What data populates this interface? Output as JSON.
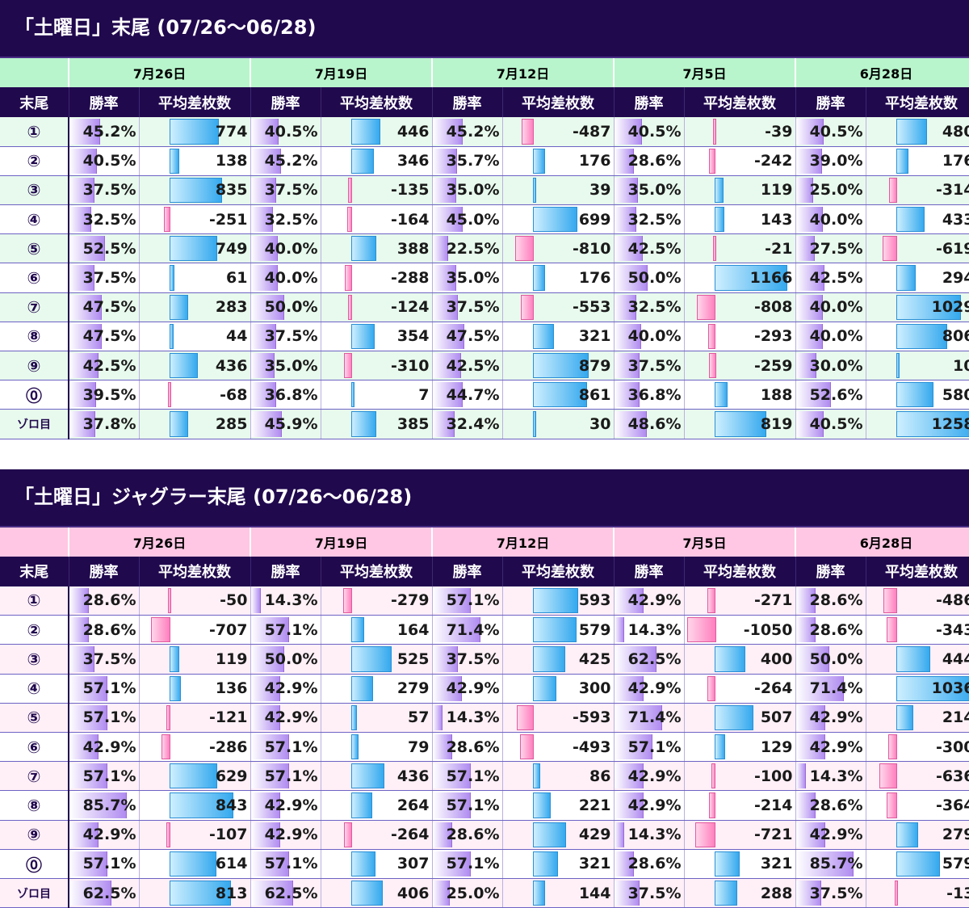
{
  "colors": {
    "header_bg": "#21094e",
    "t1_date_bg": "#b8f5cc",
    "t1_row_tint": "#e8faed",
    "t2_date_bg": "#ffc7e3",
    "t2_row_tint": "#fff0f7",
    "win_bar": "#b08cf0",
    "pos_bar": "#35a9ee",
    "neg_bar": "#ff7fbe"
  },
  "col_headers": {
    "label": "末尾",
    "win": "勝率",
    "diff": "平均差枚数"
  },
  "row_labels": [
    "①",
    "②",
    "③",
    "④",
    "⑤",
    "⑥",
    "⑦",
    "⑧",
    "⑨",
    "⓪",
    "ゾロ目"
  ],
  "dates": [
    "7月26日",
    "7月19日",
    "7月12日",
    "7月5日",
    "6月28日"
  ],
  "table1": {
    "title": "「土曜日」末尾 (07/26～06/28)",
    "max_abs_diff": 1258,
    "rows": [
      [
        [
          "45.2%",
          774
        ],
        [
          "40.5%",
          446
        ],
        [
          "45.2%",
          -487
        ],
        [
          "40.5%",
          -39
        ],
        [
          "40.5%",
          480
        ]
      ],
      [
        [
          "40.5%",
          138
        ],
        [
          "45.2%",
          346
        ],
        [
          "35.7%",
          176
        ],
        [
          "28.6%",
          -242
        ],
        [
          "39.0%",
          176
        ]
      ],
      [
        [
          "37.5%",
          835
        ],
        [
          "37.5%",
          -135
        ],
        [
          "35.0%",
          39
        ],
        [
          "35.0%",
          119
        ],
        [
          "25.0%",
          -314
        ]
      ],
      [
        [
          "32.5%",
          -251
        ],
        [
          "32.5%",
          -164
        ],
        [
          "45.0%",
          699
        ],
        [
          "32.5%",
          143
        ],
        [
          "40.0%",
          433
        ]
      ],
      [
        [
          "52.5%",
          749
        ],
        [
          "40.0%",
          388
        ],
        [
          "22.5%",
          -810
        ],
        [
          "42.5%",
          -21
        ],
        [
          "27.5%",
          -619
        ]
      ],
      [
        [
          "37.5%",
          61
        ],
        [
          "40.0%",
          -288
        ],
        [
          "35.0%",
          176
        ],
        [
          "50.0%",
          1166
        ],
        [
          "42.5%",
          294
        ]
      ],
      [
        [
          "47.5%",
          283
        ],
        [
          "50.0%",
          -124
        ],
        [
          "37.5%",
          -553
        ],
        [
          "32.5%",
          -808
        ],
        [
          "40.0%",
          1029
        ]
      ],
      [
        [
          "47.5%",
          44
        ],
        [
          "37.5%",
          354
        ],
        [
          "47.5%",
          321
        ],
        [
          "40.0%",
          -293
        ],
        [
          "40.0%",
          806
        ]
      ],
      [
        [
          "42.5%",
          436
        ],
        [
          "35.0%",
          -310
        ],
        [
          "42.5%",
          879
        ],
        [
          "37.5%",
          -259
        ],
        [
          "30.0%",
          10
        ]
      ],
      [
        [
          "39.5%",
          -68
        ],
        [
          "36.8%",
          7
        ],
        [
          "44.7%",
          861
        ],
        [
          "36.8%",
          188
        ],
        [
          "52.6%",
          580
        ]
      ],
      [
        [
          "37.8%",
          285
        ],
        [
          "45.9%",
          385
        ],
        [
          "32.4%",
          30
        ],
        [
          "48.6%",
          819
        ],
        [
          "40.5%",
          1258
        ]
      ]
    ]
  },
  "table2": {
    "title": "「土曜日」ジャグラー末尾 (07/26～06/28)",
    "max_abs_diff": 1050,
    "rows": [
      [
        [
          "28.6%",
          -50
        ],
        [
          "14.3%",
          -279
        ],
        [
          "57.1%",
          593
        ],
        [
          "42.9%",
          -271
        ],
        [
          "28.6%",
          -486
        ]
      ],
      [
        [
          "28.6%",
          -707
        ],
        [
          "57.1%",
          164
        ],
        [
          "71.4%",
          579
        ],
        [
          "14.3%",
          -1050
        ],
        [
          "28.6%",
          -343
        ]
      ],
      [
        [
          "37.5%",
          119
        ],
        [
          "50.0%",
          525
        ],
        [
          "37.5%",
          425
        ],
        [
          "62.5%",
          400
        ],
        [
          "50.0%",
          444
        ]
      ],
      [
        [
          "57.1%",
          136
        ],
        [
          "42.9%",
          279
        ],
        [
          "42.9%",
          300
        ],
        [
          "42.9%",
          -264
        ],
        [
          "71.4%",
          1036
        ]
      ],
      [
        [
          "57.1%",
          -121
        ],
        [
          "42.9%",
          57
        ],
        [
          "14.3%",
          -593
        ],
        [
          "71.4%",
          507
        ],
        [
          "42.9%",
          214
        ]
      ],
      [
        [
          "42.9%",
          -286
        ],
        [
          "57.1%",
          79
        ],
        [
          "28.6%",
          -493
        ],
        [
          "57.1%",
          129
        ],
        [
          "42.9%",
          -300
        ]
      ],
      [
        [
          "57.1%",
          629
        ],
        [
          "57.1%",
          436
        ],
        [
          "57.1%",
          86
        ],
        [
          "42.9%",
          -100
        ],
        [
          "14.3%",
          -636
        ]
      ],
      [
        [
          "85.7%",
          843
        ],
        [
          "42.9%",
          264
        ],
        [
          "57.1%",
          221
        ],
        [
          "42.9%",
          -214
        ],
        [
          "28.6%",
          -364
        ]
      ],
      [
        [
          "42.9%",
          -107
        ],
        [
          "42.9%",
          -264
        ],
        [
          "28.6%",
          429
        ],
        [
          "14.3%",
          -721
        ],
        [
          "42.9%",
          279
        ]
      ],
      [
        [
          "57.1%",
          614
        ],
        [
          "57.1%",
          307
        ],
        [
          "57.1%",
          321
        ],
        [
          "28.6%",
          321
        ],
        [
          "85.7%",
          579
        ]
      ],
      [
        [
          "62.5%",
          813
        ],
        [
          "62.5%",
          406
        ],
        [
          "25.0%",
          144
        ],
        [
          "37.5%",
          288
        ],
        [
          "37.5%",
          -13
        ]
      ]
    ]
  }
}
